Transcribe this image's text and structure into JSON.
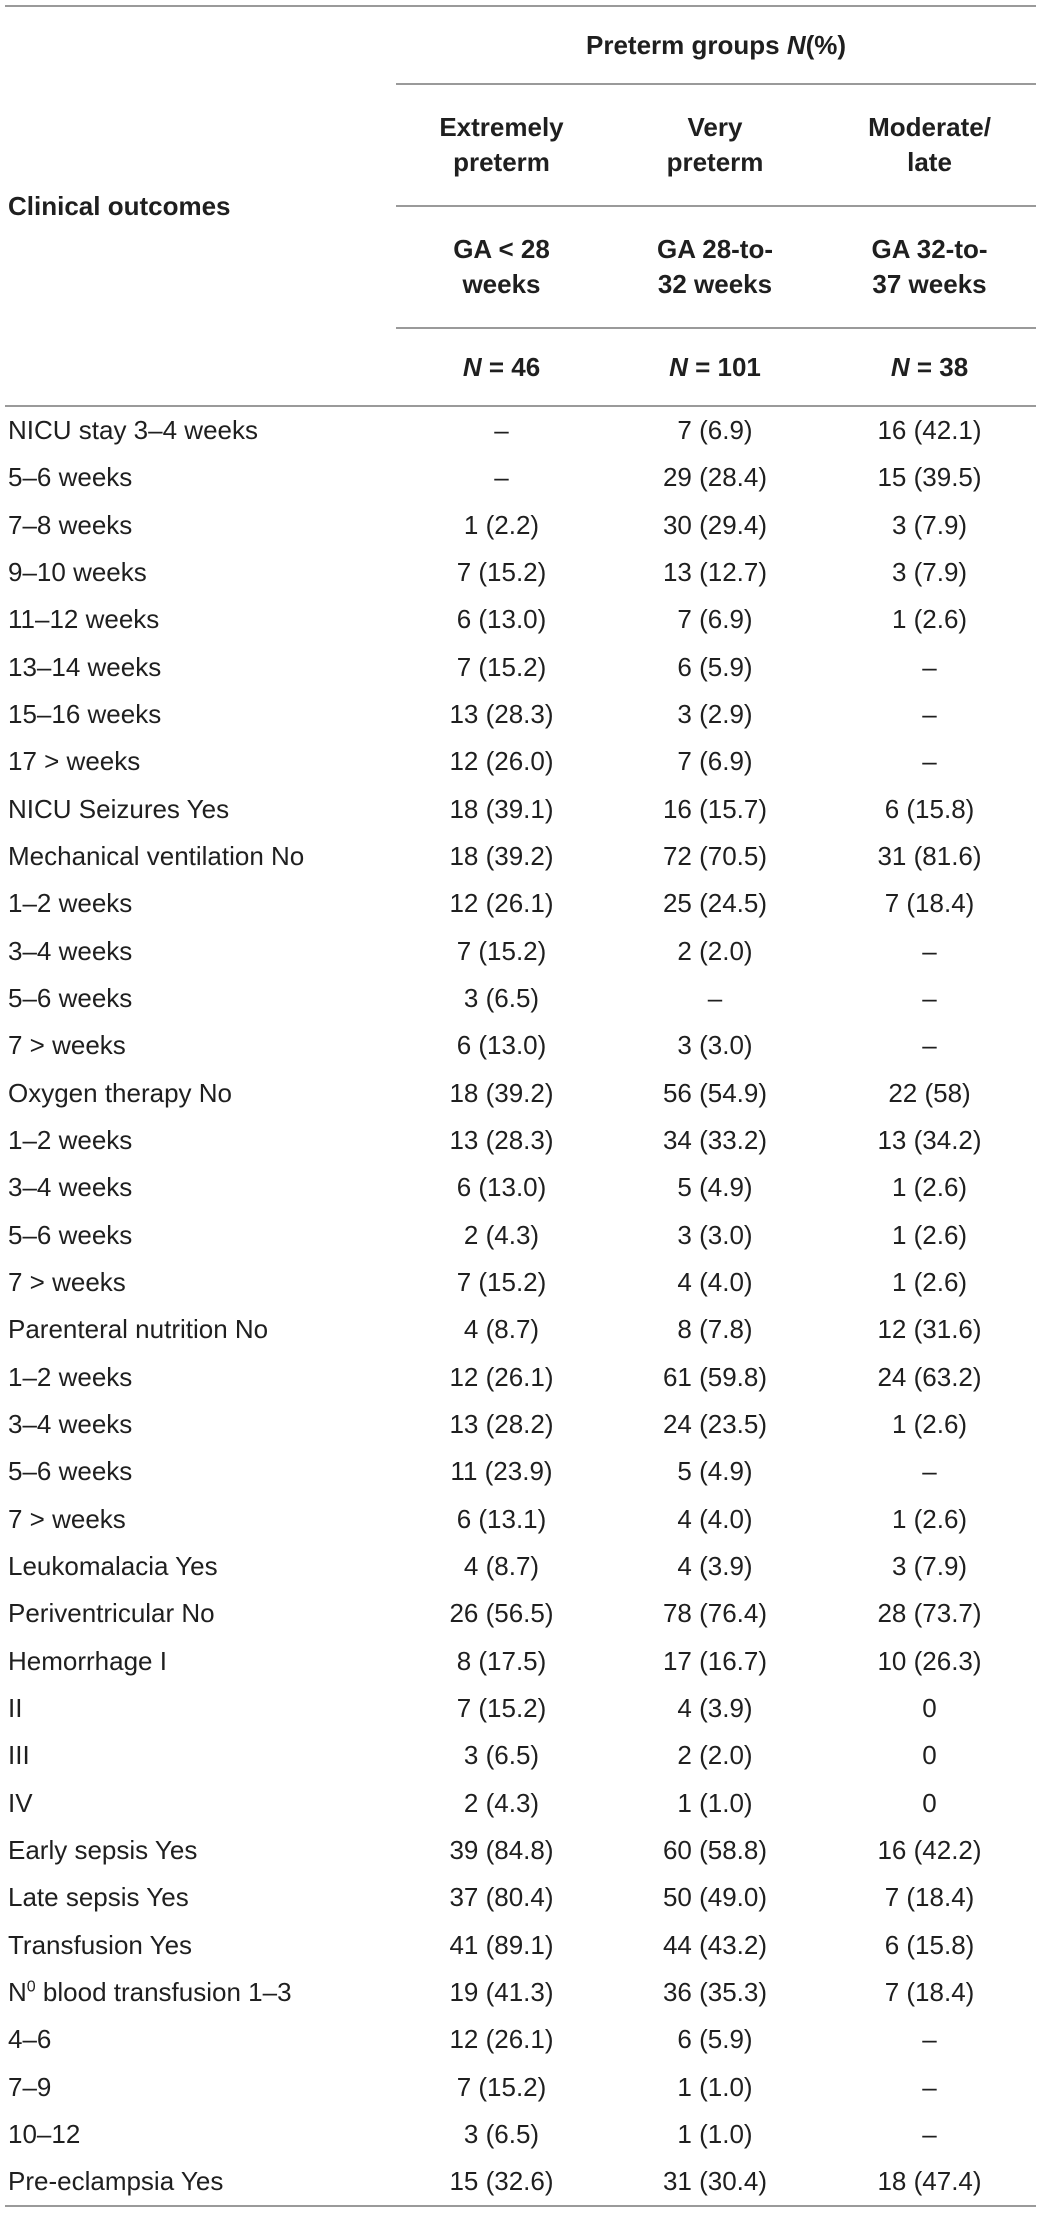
{
  "header": {
    "group_label_prefix": "Preterm groups ",
    "group_label_italic": "N",
    "group_label_suffix": "(%)",
    "outcomes_label": "Clinical outcomes",
    "columns": [
      {
        "name": "Extremely preterm",
        "ga": "GA < 28 weeks",
        "n_prefix": "N",
        "n_value": " = 46"
      },
      {
        "name": "Very preterm",
        "ga": "GA 28-to-32 weeks",
        "n_prefix": "N",
        "n_value": " = 101"
      },
      {
        "name": "Moderate/ late",
        "ga": "GA 32-to-37 weeks",
        "n_prefix": "N",
        "n_value": " = 38"
      }
    ]
  },
  "rows": [
    {
      "label": "NICU stay 3–4 weeks",
      "v": [
        "–",
        "7 (6.9)",
        "16 (42.1)"
      ]
    },
    {
      "label": "5–6 weeks",
      "v": [
        "–",
        "29 (28.4)",
        "15 (39.5)"
      ]
    },
    {
      "label": "7–8 weeks",
      "v": [
        "1 (2.2)",
        "30 (29.4)",
        "3 (7.9)"
      ]
    },
    {
      "label": "9–10 weeks",
      "v": [
        "7 (15.2)",
        "13 (12.7)",
        "3 (7.9)"
      ]
    },
    {
      "label": "11–12 weeks",
      "v": [
        "6 (13.0)",
        "7 (6.9)",
        "1 (2.6)"
      ]
    },
    {
      "label": "13–14 weeks",
      "v": [
        "7 (15.2)",
        "6 (5.9)",
        "–"
      ]
    },
    {
      "label": "15–16 weeks",
      "v": [
        "13 (28.3)",
        "3 (2.9)",
        "–"
      ]
    },
    {
      "label": "17 > weeks",
      "v": [
        "12 (26.0)",
        "7 (6.9)",
        "–"
      ]
    },
    {
      "label": "NICU Seizures Yes",
      "v": [
        "18 (39.1)",
        "16 (15.7)",
        "6 (15.8)"
      ]
    },
    {
      "label": "Mechanical ventilation No",
      "v": [
        "18 (39.2)",
        "72 (70.5)",
        "31 (81.6)"
      ]
    },
    {
      "label": "1–2 weeks",
      "v": [
        "12 (26.1)",
        "25 (24.5)",
        "7 (18.4)"
      ]
    },
    {
      "label": "3–4 weeks",
      "v": [
        "7 (15.2)",
        "2 (2.0)",
        "–"
      ]
    },
    {
      "label": "5–6 weeks",
      "v": [
        "3 (6.5)",
        "–",
        "–"
      ]
    },
    {
      "label": "7 > weeks",
      "v": [
        "6 (13.0)",
        "3 (3.0)",
        "–"
      ]
    },
    {
      "label": "Oxygen therapy No",
      "v": [
        "18 (39.2)",
        "56 (54.9)",
        "22 (58)"
      ]
    },
    {
      "label": "1–2 weeks",
      "v": [
        "13 (28.3)",
        "34 (33.2)",
        "13 (34.2)"
      ]
    },
    {
      "label": "3–4 weeks",
      "v": [
        "6 (13.0)",
        "5 (4.9)",
        "1 (2.6)"
      ]
    },
    {
      "label": "5–6 weeks",
      "v": [
        "2 (4.3)",
        "3 (3.0)",
        "1 (2.6)"
      ]
    },
    {
      "label": "7 > weeks",
      "v": [
        "7 (15.2)",
        "4 (4.0)",
        "1 (2.6)"
      ]
    },
    {
      "label": "Parenteral nutrition No",
      "v": [
        "4 (8.7)",
        "8 (7.8)",
        "12 (31.6)"
      ]
    },
    {
      "label": "1–2 weeks",
      "v": [
        "12 (26.1)",
        "61 (59.8)",
        "24 (63.2)"
      ]
    },
    {
      "label": "3–4 weeks",
      "v": [
        "13 (28.2)",
        "24 (23.5)",
        "1 (2.6)"
      ]
    },
    {
      "label": "5–6 weeks",
      "v": [
        "11 (23.9)",
        "5 (4.9)",
        "–"
      ]
    },
    {
      "label": "7 > weeks",
      "v": [
        "6 (13.1)",
        "4 (4.0)",
        "1 (2.6)"
      ]
    },
    {
      "label": "Leukomalacia Yes",
      "v": [
        "4 (8.7)",
        "4 (3.9)",
        "3 (7.9)"
      ]
    },
    {
      "label": "Periventricular No",
      "v": [
        "26 (56.5)",
        "78 (76.4)",
        "28 (73.7)"
      ]
    },
    {
      "label": "Hemorrhage I",
      "v": [
        "8 (17.5)",
        "17 (16.7)",
        "10 (26.3)"
      ]
    },
    {
      "label": "II",
      "v": [
        "7 (15.2)",
        "4 (3.9)",
        "0"
      ]
    },
    {
      "label": "III",
      "v": [
        "3 (6.5)",
        "2 (2.0)",
        "0"
      ]
    },
    {
      "label": "IV",
      "v": [
        "2 (4.3)",
        "1 (1.0)",
        "0"
      ]
    },
    {
      "label": "Early sepsis Yes",
      "v": [
        "39 (84.8)",
        "60 (58.8)",
        "16 (42.2)"
      ]
    },
    {
      "label": "Late sepsis Yes",
      "v": [
        "37 (80.4)",
        "50 (49.0)",
        "7 (18.4)"
      ]
    },
    {
      "label": "Transfusion Yes",
      "v": [
        "41 (89.1)",
        "44 (43.2)",
        "6 (15.8)"
      ]
    },
    {
      "label_prefix": "N",
      "label_sup": "0",
      "label": " blood transfusion 1–3",
      "v": [
        "19 (41.3)",
        "36 (35.3)",
        "7 (18.4)"
      ]
    },
    {
      "label": "4–6",
      "v": [
        "12 (26.1)",
        "6 (5.9)",
        "–"
      ]
    },
    {
      "label": "7–9",
      "v": [
        "7 (15.2)",
        "1 (1.0)",
        "–"
      ]
    },
    {
      "label": "10–12",
      "v": [
        "3 (6.5)",
        "1 (1.0)",
        "–"
      ]
    },
    {
      "label": "Pre-eclampsia Yes",
      "v": [
        "15 (32.6)",
        "31 (30.4)",
        "18 (47.4)"
      ]
    }
  ]
}
